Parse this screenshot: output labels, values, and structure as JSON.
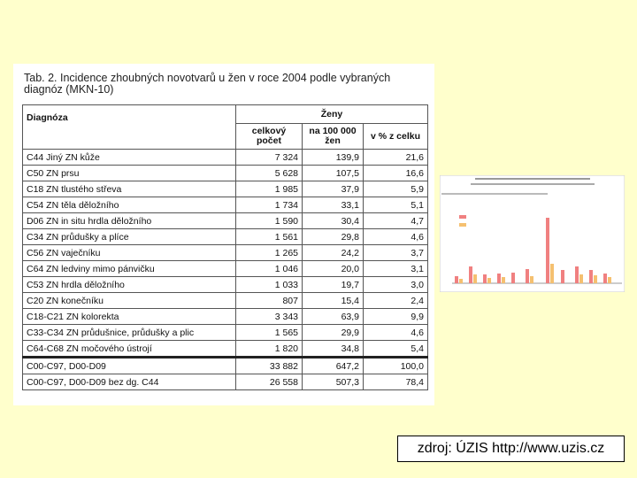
{
  "table": {
    "title": "Tab. 2. Incidence zhoubných novotvarů u žen v roce 2004 podle vybraných diagnóz (MKN-10)",
    "header": {
      "diagnosis": "Diagnóza",
      "group": "Ženy",
      "columns": [
        "celkový počet",
        "na 100 000 žen",
        "v % z celku"
      ]
    },
    "rows": [
      [
        "C44 Jiný ZN kůže",
        "7 324",
        "139,9",
        "21,6"
      ],
      [
        "C50 ZN prsu",
        "5 628",
        "107,5",
        "16,6"
      ],
      [
        "C18 ZN tlustého střeva",
        "1 985",
        "37,9",
        "5,9"
      ],
      [
        "C54 ZN těla děložního",
        "1 734",
        "33,1",
        "5,1"
      ],
      [
        "D06 ZN in situ hrdla děložního",
        "1 590",
        "30,4",
        "4,7"
      ],
      [
        "C34 ZN průdušky a plíce",
        "1 561",
        "29,8",
        "4,6"
      ],
      [
        "C56 ZN vaječníku",
        "1 265",
        "24,2",
        "3,7"
      ],
      [
        "C64 ZN ledviny mimo pánvičku",
        "1 046",
        "20,0",
        "3,1"
      ],
      [
        "C53 ZN hrdla děložního",
        "1 033",
        "19,7",
        "3,0"
      ],
      [
        "C20 ZN konečníku",
        "807",
        "15,4",
        "2,4"
      ],
      [
        "C18-C21 ZN kolorekta",
        "3 343",
        "63,9",
        "9,9"
      ],
      [
        "C33-C34 ZN průdušnice, průdušky a plic",
        "1 565",
        "29,9",
        "4,6"
      ],
      [
        "C64-C68 ZN močového ústrojí",
        "1 820",
        "34,8",
        "5,4"
      ]
    ],
    "totals": [
      [
        "C00-C97, D00-D09",
        "33 882",
        "647,2",
        "100,0"
      ],
      [
        "C00-C97, D00-D09 bez dg. C44",
        "26 558",
        "507,3",
        "78,4"
      ]
    ]
  },
  "source": "zdroj: ÚZIS http://www.uzis.cz"
}
